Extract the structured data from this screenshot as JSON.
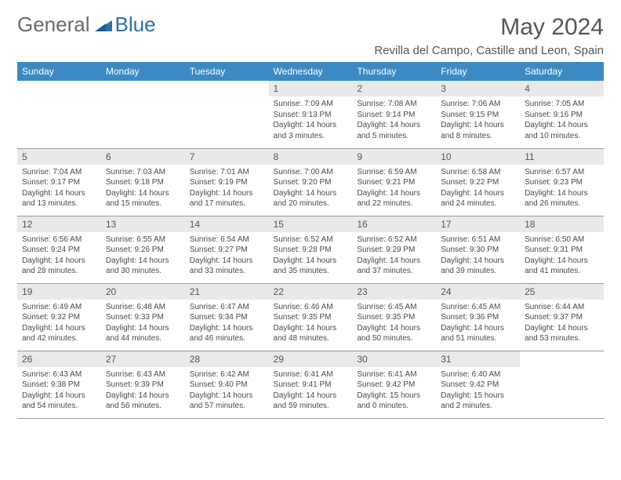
{
  "brand": {
    "part1": "General",
    "part2": "Blue"
  },
  "title": "May 2024",
  "location": "Revilla del Campo, Castille and Leon, Spain",
  "day_headers": [
    "Sunday",
    "Monday",
    "Tuesday",
    "Wednesday",
    "Thursday",
    "Friday",
    "Saturday"
  ],
  "colors": {
    "header_bg": "#3b8ac4",
    "header_text": "#ffffff",
    "daynum_bg": "#e9e9e9",
    "border": "#999999",
    "text": "#4a4a4a",
    "brand_blue": "#2f6fa8"
  },
  "weeks": [
    [
      {
        "n": "",
        "sr": "",
        "ss": "",
        "dl": ""
      },
      {
        "n": "",
        "sr": "",
        "ss": "",
        "dl": ""
      },
      {
        "n": "",
        "sr": "",
        "ss": "",
        "dl": ""
      },
      {
        "n": "1",
        "sr": "Sunrise: 7:09 AM",
        "ss": "Sunset: 9:13 PM",
        "dl": "Daylight: 14 hours and 3 minutes."
      },
      {
        "n": "2",
        "sr": "Sunrise: 7:08 AM",
        "ss": "Sunset: 9:14 PM",
        "dl": "Daylight: 14 hours and 5 minutes."
      },
      {
        "n": "3",
        "sr": "Sunrise: 7:06 AM",
        "ss": "Sunset: 9:15 PM",
        "dl": "Daylight: 14 hours and 8 minutes."
      },
      {
        "n": "4",
        "sr": "Sunrise: 7:05 AM",
        "ss": "Sunset: 9:16 PM",
        "dl": "Daylight: 14 hours and 10 minutes."
      }
    ],
    [
      {
        "n": "5",
        "sr": "Sunrise: 7:04 AM",
        "ss": "Sunset: 9:17 PM",
        "dl": "Daylight: 14 hours and 13 minutes."
      },
      {
        "n": "6",
        "sr": "Sunrise: 7:03 AM",
        "ss": "Sunset: 9:18 PM",
        "dl": "Daylight: 14 hours and 15 minutes."
      },
      {
        "n": "7",
        "sr": "Sunrise: 7:01 AM",
        "ss": "Sunset: 9:19 PM",
        "dl": "Daylight: 14 hours and 17 minutes."
      },
      {
        "n": "8",
        "sr": "Sunrise: 7:00 AM",
        "ss": "Sunset: 9:20 PM",
        "dl": "Daylight: 14 hours and 20 minutes."
      },
      {
        "n": "9",
        "sr": "Sunrise: 6:59 AM",
        "ss": "Sunset: 9:21 PM",
        "dl": "Daylight: 14 hours and 22 minutes."
      },
      {
        "n": "10",
        "sr": "Sunrise: 6:58 AM",
        "ss": "Sunset: 9:22 PM",
        "dl": "Daylight: 14 hours and 24 minutes."
      },
      {
        "n": "11",
        "sr": "Sunrise: 6:57 AM",
        "ss": "Sunset: 9:23 PM",
        "dl": "Daylight: 14 hours and 26 minutes."
      }
    ],
    [
      {
        "n": "12",
        "sr": "Sunrise: 6:56 AM",
        "ss": "Sunset: 9:24 PM",
        "dl": "Daylight: 14 hours and 28 minutes."
      },
      {
        "n": "13",
        "sr": "Sunrise: 6:55 AM",
        "ss": "Sunset: 9:26 PM",
        "dl": "Daylight: 14 hours and 30 minutes."
      },
      {
        "n": "14",
        "sr": "Sunrise: 6:54 AM",
        "ss": "Sunset: 9:27 PM",
        "dl": "Daylight: 14 hours and 33 minutes."
      },
      {
        "n": "15",
        "sr": "Sunrise: 6:52 AM",
        "ss": "Sunset: 9:28 PM",
        "dl": "Daylight: 14 hours and 35 minutes."
      },
      {
        "n": "16",
        "sr": "Sunrise: 6:52 AM",
        "ss": "Sunset: 9:29 PM",
        "dl": "Daylight: 14 hours and 37 minutes."
      },
      {
        "n": "17",
        "sr": "Sunrise: 6:51 AM",
        "ss": "Sunset: 9:30 PM",
        "dl": "Daylight: 14 hours and 39 minutes."
      },
      {
        "n": "18",
        "sr": "Sunrise: 6:50 AM",
        "ss": "Sunset: 9:31 PM",
        "dl": "Daylight: 14 hours and 41 minutes."
      }
    ],
    [
      {
        "n": "19",
        "sr": "Sunrise: 6:49 AM",
        "ss": "Sunset: 9:32 PM",
        "dl": "Daylight: 14 hours and 42 minutes."
      },
      {
        "n": "20",
        "sr": "Sunrise: 6:48 AM",
        "ss": "Sunset: 9:33 PM",
        "dl": "Daylight: 14 hours and 44 minutes."
      },
      {
        "n": "21",
        "sr": "Sunrise: 6:47 AM",
        "ss": "Sunset: 9:34 PM",
        "dl": "Daylight: 14 hours and 46 minutes."
      },
      {
        "n": "22",
        "sr": "Sunrise: 6:46 AM",
        "ss": "Sunset: 9:35 PM",
        "dl": "Daylight: 14 hours and 48 minutes."
      },
      {
        "n": "23",
        "sr": "Sunrise: 6:45 AM",
        "ss": "Sunset: 9:35 PM",
        "dl": "Daylight: 14 hours and 50 minutes."
      },
      {
        "n": "24",
        "sr": "Sunrise: 6:45 AM",
        "ss": "Sunset: 9:36 PM",
        "dl": "Daylight: 14 hours and 51 minutes."
      },
      {
        "n": "25",
        "sr": "Sunrise: 6:44 AM",
        "ss": "Sunset: 9:37 PM",
        "dl": "Daylight: 14 hours and 53 minutes."
      }
    ],
    [
      {
        "n": "26",
        "sr": "Sunrise: 6:43 AM",
        "ss": "Sunset: 9:38 PM",
        "dl": "Daylight: 14 hours and 54 minutes."
      },
      {
        "n": "27",
        "sr": "Sunrise: 6:43 AM",
        "ss": "Sunset: 9:39 PM",
        "dl": "Daylight: 14 hours and 56 minutes."
      },
      {
        "n": "28",
        "sr": "Sunrise: 6:42 AM",
        "ss": "Sunset: 9:40 PM",
        "dl": "Daylight: 14 hours and 57 minutes."
      },
      {
        "n": "29",
        "sr": "Sunrise: 6:41 AM",
        "ss": "Sunset: 9:41 PM",
        "dl": "Daylight: 14 hours and 59 minutes."
      },
      {
        "n": "30",
        "sr": "Sunrise: 6:41 AM",
        "ss": "Sunset: 9:42 PM",
        "dl": "Daylight: 15 hours and 0 minutes."
      },
      {
        "n": "31",
        "sr": "Sunrise: 6:40 AM",
        "ss": "Sunset: 9:42 PM",
        "dl": "Daylight: 15 hours and 2 minutes."
      },
      {
        "n": "",
        "sr": "",
        "ss": "",
        "dl": ""
      }
    ]
  ]
}
